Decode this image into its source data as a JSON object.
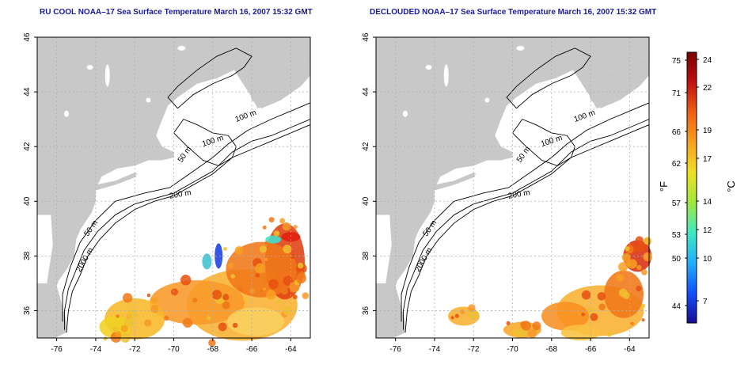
{
  "panels": [
    {
      "title": "RU COOL NOAA–17 Sea Surface Temperature March 16, 2007 15:32 GMT",
      "variant": "raw"
    },
    {
      "title": "DECLOUDED NOAA–17 Sea Surface Temperature March 16, 2007 15:32 GMT",
      "variant": "declouded"
    }
  ],
  "axes": {
    "x_ticks": [
      "-76",
      "-74",
      "-72",
      "-70",
      "-68",
      "-66",
      "-64"
    ],
    "y_ticks": [
      "36",
      "38",
      "40",
      "42",
      "44",
      "46"
    ]
  },
  "contour_labels": [
    "100 m",
    "100 m",
    "50 m",
    "200 m",
    "50 m",
    "2000 m"
  ],
  "colorbar": {
    "fahrenheit_ticks": [
      "75",
      "71",
      "66",
      "62",
      "57",
      "53",
      "50",
      "44"
    ],
    "celsius_ticks": [
      "24",
      "22",
      "19",
      "17",
      "14",
      "12",
      "10",
      "7"
    ],
    "fahrenheit_label": "°F",
    "celsius_label": "°C",
    "colors": [
      "#1a0a90",
      "#1050ff",
      "#20b0ff",
      "#40e8c0",
      "#a0e840",
      "#f0e020",
      "#f8a020",
      "#f06010",
      "#c01010",
      "#7a0000"
    ]
  },
  "colors": {
    "title": "#1a1a9c",
    "land": "#c8c8c8",
    "ocean": "#ffffff",
    "grid": "#b0b0b0"
  }
}
